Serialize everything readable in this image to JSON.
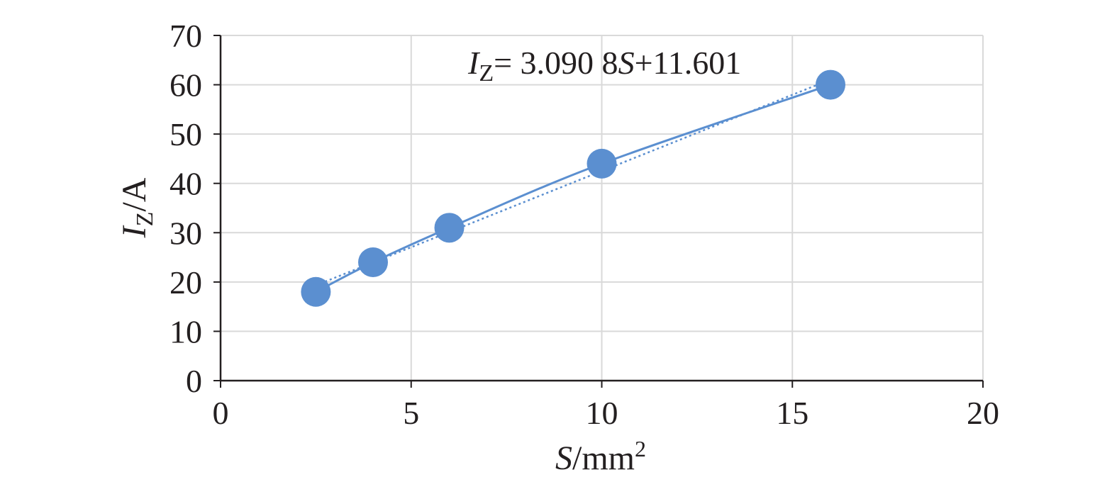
{
  "chart_data": {
    "type": "scatter",
    "x": [
      2.5,
      4,
      6,
      10,
      16
    ],
    "series": [
      {
        "values": [
          18,
          24,
          31,
          44,
          60
        ],
        "color": "#5b8fd0",
        "line": "solid-smooth",
        "marker": "circle"
      }
    ],
    "trendline": {
      "slope": 3.0908,
      "intercept": 11.601,
      "style": "dotted",
      "color": "#5b8fd0"
    },
    "annotation": {
      "var": "I",
      "sub": "Z",
      "rest1": "= 3.090 8",
      "var2": "S",
      "rest2": "+11.601"
    },
    "xlim": [
      0,
      20
    ],
    "ylim": [
      0,
      70
    ],
    "xticks": [
      "0",
      "5",
      "10",
      "15",
      "20"
    ],
    "yticks": [
      "0",
      "10",
      "20",
      "30",
      "40",
      "50",
      "60",
      "70"
    ],
    "xlabel": {
      "var": "S",
      "unit": "/mm",
      "sup": "2"
    },
    "ylabel": {
      "var": "I",
      "sub": "Z",
      "unit": "/A"
    },
    "grid": true
  }
}
